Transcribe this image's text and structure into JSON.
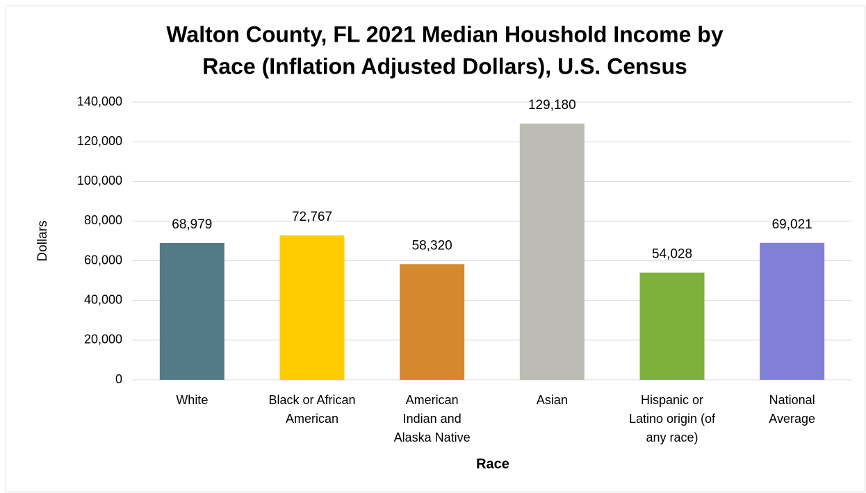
{
  "chart_data": {
    "type": "bar",
    "title": [
      "Walton County, FL 2021 Median Houshold Income by",
      "Race (Inflation Adjusted Dollars), U.S. Census"
    ],
    "ylabel": "Dollars",
    "xlabel": "Race",
    "categories": [
      [
        "White"
      ],
      [
        "Black or African",
        "American"
      ],
      [
        "American",
        "Indian and",
        "Alaska Native"
      ],
      [
        "Asian"
      ],
      [
        "Hispanic or",
        "Latino origin (of",
        "any race)"
      ],
      [
        "National",
        "Average"
      ]
    ],
    "values": [
      68979,
      72767,
      58320,
      129180,
      54028,
      69021
    ],
    "value_labels": [
      "68,979",
      "72,767",
      "58,320",
      "129,180",
      "54,028",
      "69,021"
    ],
    "colors": [
      "#527a87",
      "#ffcc00",
      "#d5892f",
      "#bcbcb4",
      "#7db13b",
      "#8080d8"
    ],
    "ylim": [
      0,
      140000
    ],
    "yticks": [
      0,
      {
        "value": 20000,
        "label": "20,000"
      },
      {
        "value": 40000,
        "label": "40,000"
      },
      {
        "value": 60000,
        "label": "60,000"
      },
      {
        "value": 80000,
        "label": "80,000"
      },
      {
        "value": 100000,
        "label": "100,000"
      },
      {
        "value": 120000,
        "label": "120,000"
      },
      {
        "value": 140000,
        "label": "140,000"
      }
    ],
    "grid": true
  }
}
